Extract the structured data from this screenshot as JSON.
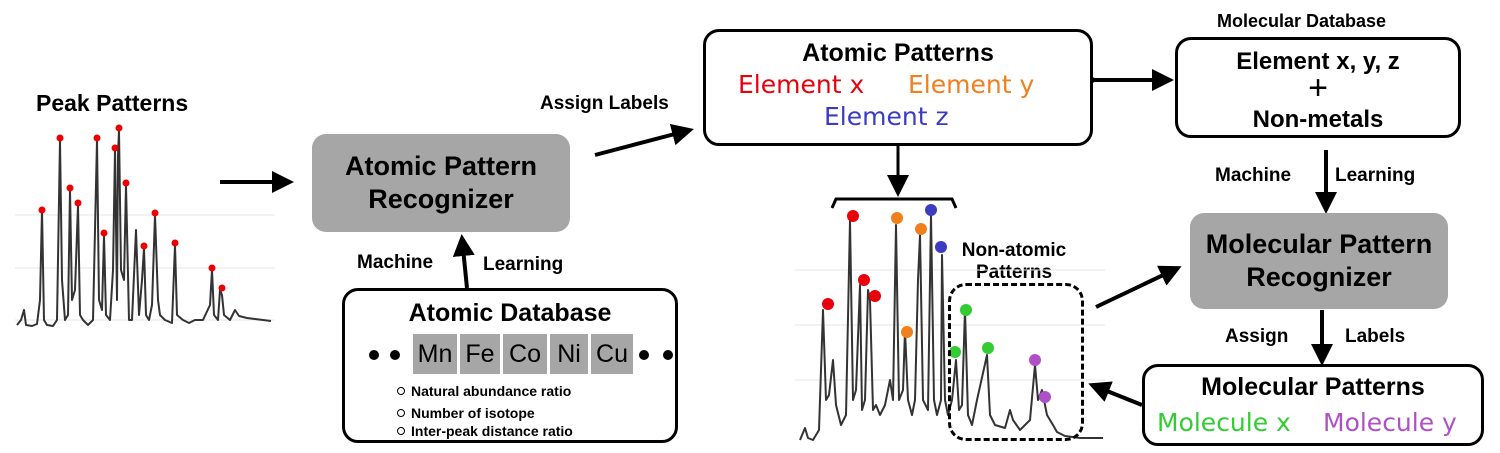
{
  "peak_patterns": {
    "title": "Peak Patterns"
  },
  "atomic_recognizer": {
    "line1": "Atomic Pattern",
    "line2": "Recognizer"
  },
  "ml_left": {
    "machine": "Machine",
    "learning": "Learning"
  },
  "atomic_db": {
    "title": "Atomic Database",
    "elements": [
      "Mn",
      "Fe",
      "Co",
      "Ni",
      "Cu"
    ],
    "bullets": [
      "Natural abundance ratio",
      "Number of isotope",
      "Inter-peak distance ratio"
    ]
  },
  "assign_labels_top": "Assign Labels",
  "atomic_patterns": {
    "title": "Atomic Patterns",
    "element_x": "Element x",
    "element_y": "Element y",
    "element_z": "Element z"
  },
  "molecular_db": {
    "caption": "Molecular Database",
    "line1": "Element x, y, z",
    "plus": "+",
    "line2": "Non-metals"
  },
  "ml_right": {
    "machine": "Machine",
    "learning": "Learning"
  },
  "molecular_recognizer": {
    "line1": "Molecular Pattern",
    "line2": "Recognizer"
  },
  "assign_right": {
    "assign": "Assign",
    "labels": "Labels"
  },
  "non_atomic": {
    "line1": "Non-atomic",
    "line2": "Patterns"
  },
  "molecular_patterns": {
    "title": "Molecular Patterns",
    "molecule_x": "Molecule x",
    "molecule_y": "Molecule y"
  },
  "colors": {
    "element_x": "#e8000b",
    "element_y": "#f07f1c",
    "element_z": "#3c3cc0",
    "molecule_x": "#33cc33",
    "molecule_y": "#b050c8",
    "box_gray": "#a6a6a6"
  }
}
